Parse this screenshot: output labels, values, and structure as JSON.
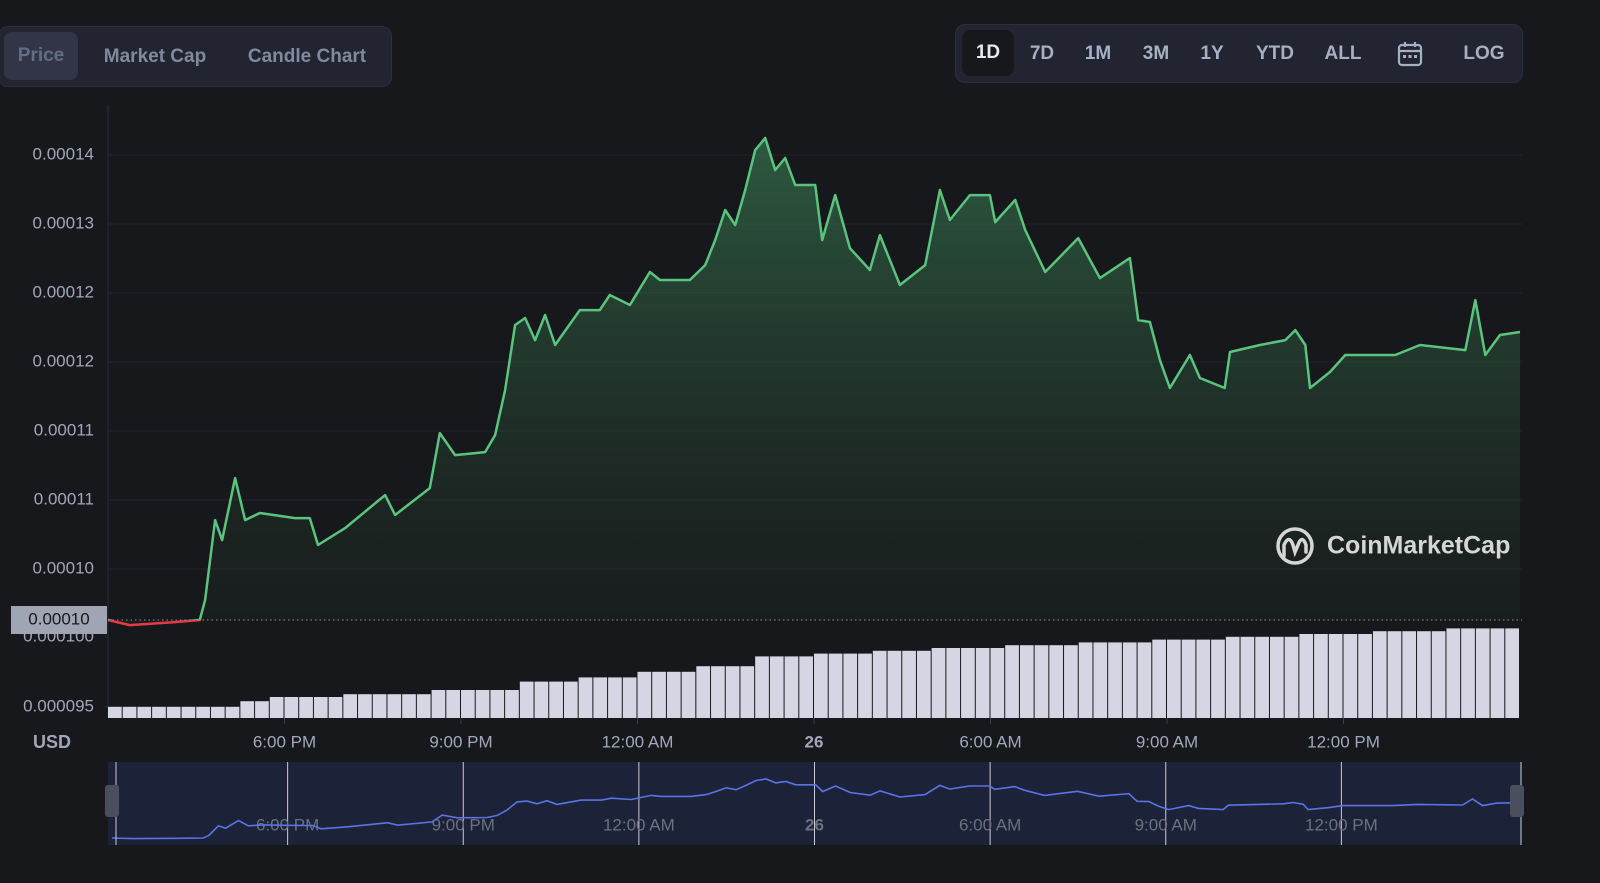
{
  "tabs": [
    "Price",
    "Market Cap",
    "Candle Chart"
  ],
  "time_ranges": [
    "1D",
    "7D",
    "1M",
    "3M",
    "1Y",
    "YTD",
    "ALL"
  ],
  "log_button": "LOG",
  "currency": "USD",
  "watermark": "CoinMarketCap",
  "chart_data": [
    {
      "type": "line",
      "color": "#5ac47f",
      "down_color": "#ea3943",
      "navigator_color": "#5b73e6",
      "x": [
        0,
        0.37,
        1.14,
        1.56,
        1.65,
        1.82,
        1.94,
        2.16,
        2.33,
        2.58,
        3.18,
        3.43,
        3.57,
        4.03,
        4.71,
        4.88,
        5.47,
        5.64,
        5.9,
        6.41,
        6.58,
        6.75,
        6.92,
        7.09,
        7.26,
        7.43,
        7.6,
        8.02,
        8.36,
        8.53,
        8.87,
        9.21,
        9.38,
        9.89,
        10.15,
        10.32,
        10.49,
        10.66,
        10.83,
        11,
        11.17,
        11.34,
        11.51,
        11.68,
        12.02,
        12.14,
        12.36,
        12.61,
        12.95,
        13.12,
        13.46,
        13.89,
        14.14,
        14.31,
        14.65,
        14.99,
        15.08,
        15.42,
        15.59,
        15.93,
        16.49,
        16.86,
        17.37,
        17.51,
        17.71,
        17.88,
        18.05,
        18.39,
        18.56,
        18.98,
        19.07,
        19.58,
        20.01,
        20.18,
        20.35,
        20.43,
        20.77,
        21.03,
        21.37,
        21.88,
        22.3,
        23.07,
        23.24,
        23.41,
        23.66,
        24
      ],
      "values": [
        9.557e-05,
        9.513e-05,
        9.539e-05,
        9.557e-05,
        9.731e-05,
        0.00010426,
        0.00010252,
        0.00010791,
        0.00010426,
        0.00010487,
        0.00010443,
        0.00010443,
        0.00010209,
        0.00010356,
        0.00010643,
        0.0001047,
        0.00010704,
        0.00011182,
        0.00010991,
        0.00011017,
        0.00011165,
        0.00011556,
        0.00012122,
        0.00012183,
        0.00011991,
        0.00012209,
        0.00011948,
        0.00012252,
        0.00012252,
        0.00012383,
        0.00012296,
        0.00012583,
        0.00012513,
        0.00012513,
        0.00012643,
        0.00012861,
        0.00013122,
        0.00012991,
        0.00013296,
        0.00013643,
        0.00013748,
        0.0001347,
        0.00013574,
        0.00013339,
        0.00013339,
        0.00012861,
        0.00013252,
        0.00012791,
        0.000126,
        0.00012904,
        0.0001247,
        0.00012643,
        0.00013296,
        0.00013035,
        0.00013252,
        0.00013252,
        0.00013017,
        0.00013209,
        0.00012948,
        0.00012583,
        0.00012878,
        0.0001253,
        0.00012704,
        0.00012165,
        0.00012148,
        0.00011817,
        0.00011574,
        0.00011861,
        0.00011661,
        0.00011574,
        0.00011887,
        0.00011948,
        0.00011991,
        0.00012078,
        0.00011948,
        0.00011574,
        0.00011713,
        0.00011861,
        0.00011861,
        0.00011861,
        0.00011948,
        0.00011904,
        0.00012339,
        0.00011861,
        0.00012035,
        0.00012061
      ],
      "xlim": [
        0,
        24
      ],
      "xticks": [
        {
          "value": 3,
          "label": "6:00 PM"
        },
        {
          "value": 6,
          "label": "9:00 PM"
        },
        {
          "value": 9,
          "label": "12:00 AM"
        },
        {
          "value": 12,
          "label": "26"
        },
        {
          "value": 15,
          "label": "6:00 AM"
        },
        {
          "value": 18,
          "label": "9:00 AM"
        },
        {
          "value": 21,
          "label": "12:00 PM"
        }
      ],
      "ylim": [
        9.557e-05,
        0.00014035
      ],
      "yticks": [
        {
          "value": 0.000136,
          "label": "0.00014"
        },
        {
          "value": 0.00013,
          "label": "0.00013"
        },
        {
          "value": 0.000124,
          "label": "0.00012"
        },
        {
          "value": 0.000118,
          "label": "0.00012"
        },
        {
          "value": 0.000112,
          "label": "0.00011"
        },
        {
          "value": 0.000106,
          "label": "0.00011"
        },
        {
          "value": 0.0001,
          "label": "0.00010"
        }
      ],
      "reference_line": {
        "value": 9.557e-05,
        "label": "0.00010"
      },
      "grid": true
    },
    {
      "type": "bar",
      "color": "#d4d7e3",
      "values": [
        9.5e-05,
        9.5e-05,
        9.5e-05,
        9.5e-05,
        9.5e-05,
        9.5e-05,
        9.5e-05,
        9.5e-05,
        9.5e-05,
        9.54e-05,
        9.54e-05,
        9.57e-05,
        9.57e-05,
        9.57e-05,
        9.57e-05,
        9.57e-05,
        9.59e-05,
        9.59e-05,
        9.59e-05,
        9.59e-05,
        9.59e-05,
        9.59e-05,
        9.62e-05,
        9.62e-05,
        9.62e-05,
        9.62e-05,
        9.62e-05,
        9.62e-05,
        9.68e-05,
        9.68e-05,
        9.68e-05,
        9.68e-05,
        9.71e-05,
        9.71e-05,
        9.71e-05,
        9.71e-05,
        9.75e-05,
        9.75e-05,
        9.75e-05,
        9.75e-05,
        9.79e-05,
        9.79e-05,
        9.79e-05,
        9.79e-05,
        9.86e-05,
        9.86e-05,
        9.86e-05,
        9.86e-05,
        9.88e-05,
        9.88e-05,
        9.88e-05,
        9.88e-05,
        9.9e-05,
        9.9e-05,
        9.9e-05,
        9.9e-05,
        9.92e-05,
        9.92e-05,
        9.92e-05,
        9.92e-05,
        9.92e-05,
        9.94e-05,
        9.94e-05,
        9.94e-05,
        9.94e-05,
        9.94e-05,
        9.96e-05,
        9.96e-05,
        9.96e-05,
        9.96e-05,
        9.96e-05,
        9.98e-05,
        9.98e-05,
        9.98e-05,
        9.98e-05,
        9.98e-05,
        0.0001,
        0.0001,
        0.0001,
        0.0001,
        0.0001,
        0.0001002,
        0.0001002,
        0.0001002,
        0.0001002,
        0.0001002,
        0.0001004,
        0.0001004,
        0.0001004,
        0.0001004,
        0.0001004,
        0.0001006,
        0.0001006,
        0.0001006,
        0.0001006,
        0.0001006
      ],
      "ylim": [
        9.42e-05,
        0.0001012
      ],
      "yticks": [
        {
          "value": 0.0001,
          "label": "0.000100"
        },
        {
          "value": 9.5e-05,
          "label": "0.000095"
        }
      ]
    }
  ]
}
